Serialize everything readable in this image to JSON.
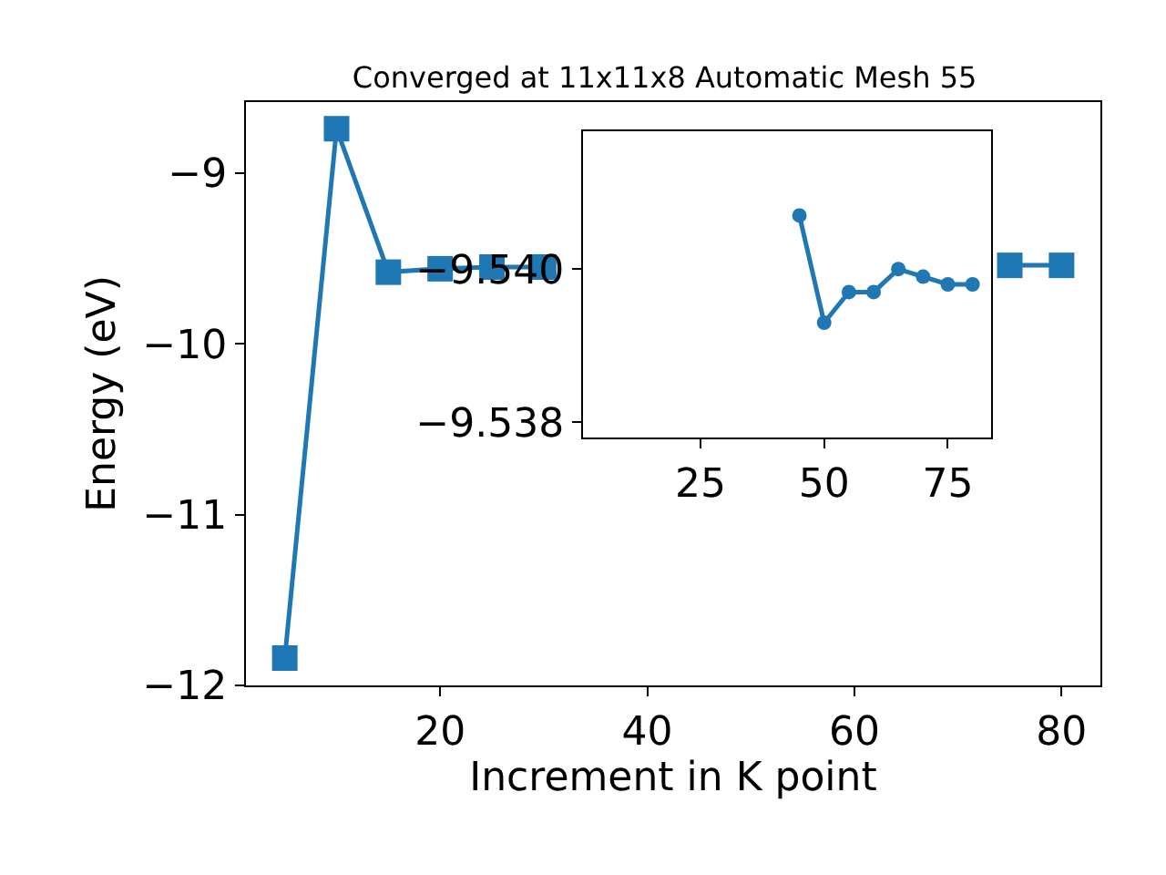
{
  "chart_data": [
    {
      "type": "line",
      "title": "Converged at 11x11x8 Automatic Mesh 55",
      "xlabel": "Increment in K point",
      "ylabel": "Energy (eV)",
      "x": [
        5,
        10,
        15,
        20,
        25,
        30,
        35,
        40,
        45,
        50,
        55,
        60,
        65,
        70,
        75,
        80
      ],
      "values": [
        -11.84,
        -8.74,
        -9.58,
        -9.56,
        -9.55,
        -9.55,
        null,
        null,
        null,
        null,
        null,
        null,
        null,
        null,
        -9.54,
        -9.54
      ],
      "color": "#1f77b4",
      "marker": "square",
      "xlim": [
        1.25,
        83.75
      ],
      "ylim": [
        -12,
        -8.584
      ],
      "xticks": [
        20,
        40,
        60,
        80
      ],
      "yticks": [
        {
          "value": -12,
          "label": "−12"
        },
        {
          "value": -11,
          "label": "−11"
        },
        {
          "value": -10,
          "label": "−10"
        },
        {
          "value": -9,
          "label": "−9"
        }
      ]
    },
    {
      "type": "line",
      "x": [
        45,
        50,
        55,
        60,
        65,
        70,
        75,
        80
      ],
      "values": [
        -9.5407,
        -9.5393,
        -9.5397,
        -9.5397,
        -9.54,
        -9.5399,
        -9.5398,
        -9.5398
      ],
      "color": "#1f77b4",
      "marker": "circle",
      "xlim": [
        1.25,
        83.75
      ],
      "ylim": [
        -9.5378,
        -9.5418
      ],
      "xticks": [
        25,
        50,
        75
      ],
      "yticks": [
        {
          "value": -9.54,
          "label": "−9.540"
        },
        {
          "value": -9.538,
          "label": "−9.538"
        }
      ]
    }
  ]
}
